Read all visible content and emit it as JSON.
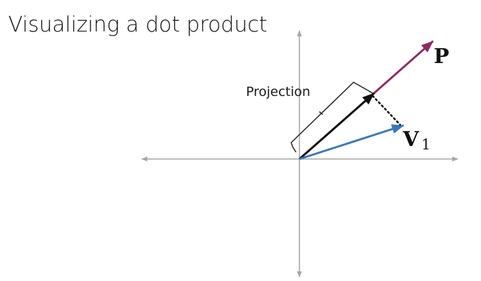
{
  "title": "Visualizing a dot product",
  "labels": {
    "projection": "Projection",
    "vector_p": "P",
    "vector_v": "V",
    "vector_v_subscript": "1"
  },
  "colors": {
    "axis": "#a6a6a6",
    "vector_p": "#8e2a62",
    "vector_v": "#3b78b8",
    "projection": "#111111",
    "dotted_line": "#111111",
    "brace": "#222222"
  }
}
